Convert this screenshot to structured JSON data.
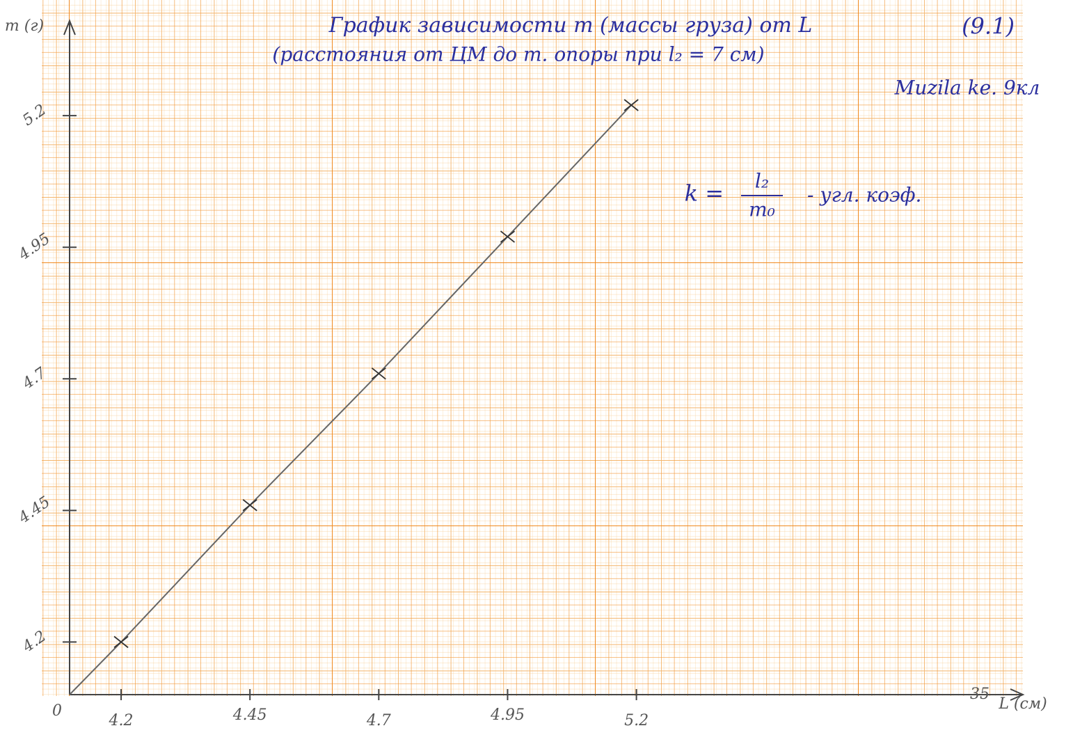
{
  "chart_data": {
    "type": "line",
    "title": "График зависимости m (массы груза) от L",
    "title_note": "(9.1)",
    "subtitle": "(расстояния от ЦМ до т. опоры при l₂ = 7 см)",
    "author": "Muzila ke. 9кл",
    "formula": {
      "lhs": "k =",
      "numerator": "l₂",
      "denominator": "m₀",
      "note": "- угл. коэф."
    },
    "x_label": "L (см)",
    "y_label": "m (г)",
    "origin_label": "0",
    "x_end_label": "35",
    "x": [
      4.2,
      4.45,
      4.7,
      4.95,
      5.19
    ],
    "values": [
      4.2,
      4.46,
      4.71,
      4.97,
      5.22
    ],
    "color": "#666666",
    "xlim": [
      4.1,
      5.95
    ],
    "ylim": [
      4.1,
      5.38
    ],
    "xticks": [
      4.2,
      4.45,
      4.7,
      4.95,
      5.2
    ],
    "yticks": [
      4.2,
      4.45,
      4.7,
      4.95,
      5.2
    ]
  }
}
